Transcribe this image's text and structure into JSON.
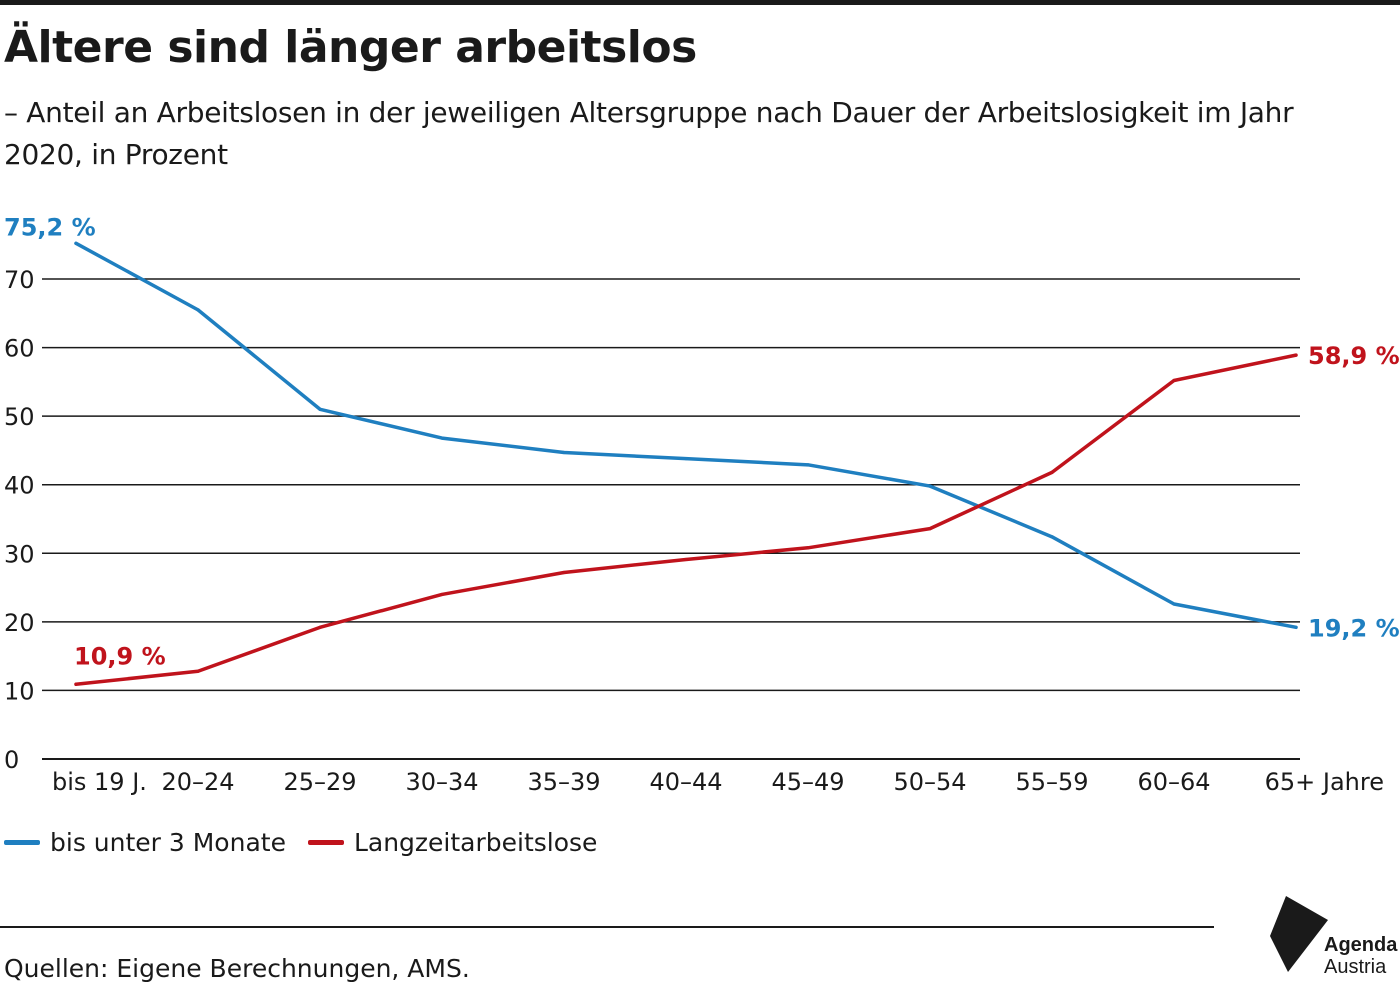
{
  "header": {
    "title": "Ältere sind länger arbeitslos",
    "subtitle": "– Anteil an Arbeitslosen in der jeweiligen Altersgruppe nach Dauer der Arbeitslosigkeit im Jahr 2020, in Prozent"
  },
  "chart_data": {
    "type": "line",
    "title": "Ältere sind länger arbeitslos",
    "subtitle": "– Anteil an Arbeitslosen in der jeweiligen Altersgruppe nach Dauer der Arbeitslosigkeit im Jahr 2020, in Prozent",
    "categories": [
      "bis 19 J.",
      "20–24",
      "25–29",
      "30–34",
      "35–39",
      "40–44",
      "45–49",
      "50–54",
      "55–59",
      "60–64",
      "65+ Jahre"
    ],
    "xlabel": "",
    "ylabel": "",
    "ylim": [
      0,
      70
    ],
    "yticks": [
      0,
      10,
      20,
      30,
      40,
      50,
      60,
      70
    ],
    "grid": true,
    "legend_position": "bottom-left",
    "series": [
      {
        "name": "bis unter 3 Monate",
        "color": "#1f7fc0",
        "values": [
          75.2,
          65.5,
          51.0,
          46.8,
          44.7,
          43.8,
          42.9,
          39.8,
          32.4,
          22.6,
          19.2
        ],
        "labels": [
          {
            "index": 0,
            "text": "75,2 %"
          },
          {
            "index": 10,
            "text": "19,2 %"
          }
        ]
      },
      {
        "name": "Langzeitarbeitslose",
        "color": "#c0131c",
        "values": [
          10.9,
          12.8,
          19.2,
          24.0,
          27.2,
          29.1,
          30.8,
          33.6,
          41.8,
          55.2,
          58.9
        ],
        "labels": [
          {
            "index": 0,
            "text": "10,9 %"
          },
          {
            "index": 10,
            "text": "58,9 %"
          }
        ]
      }
    ]
  },
  "legend": {
    "items": [
      {
        "label": "bis unter 3 Monate",
        "color": "#1f7fc0"
      },
      {
        "label": "Langzeitarbeitslose",
        "color": "#c0131c"
      }
    ]
  },
  "footer": {
    "source": "Quellen: Eigene Berechnungen, AMS."
  },
  "logo": {
    "line1": "Agenda",
    "line2": "Austria"
  }
}
